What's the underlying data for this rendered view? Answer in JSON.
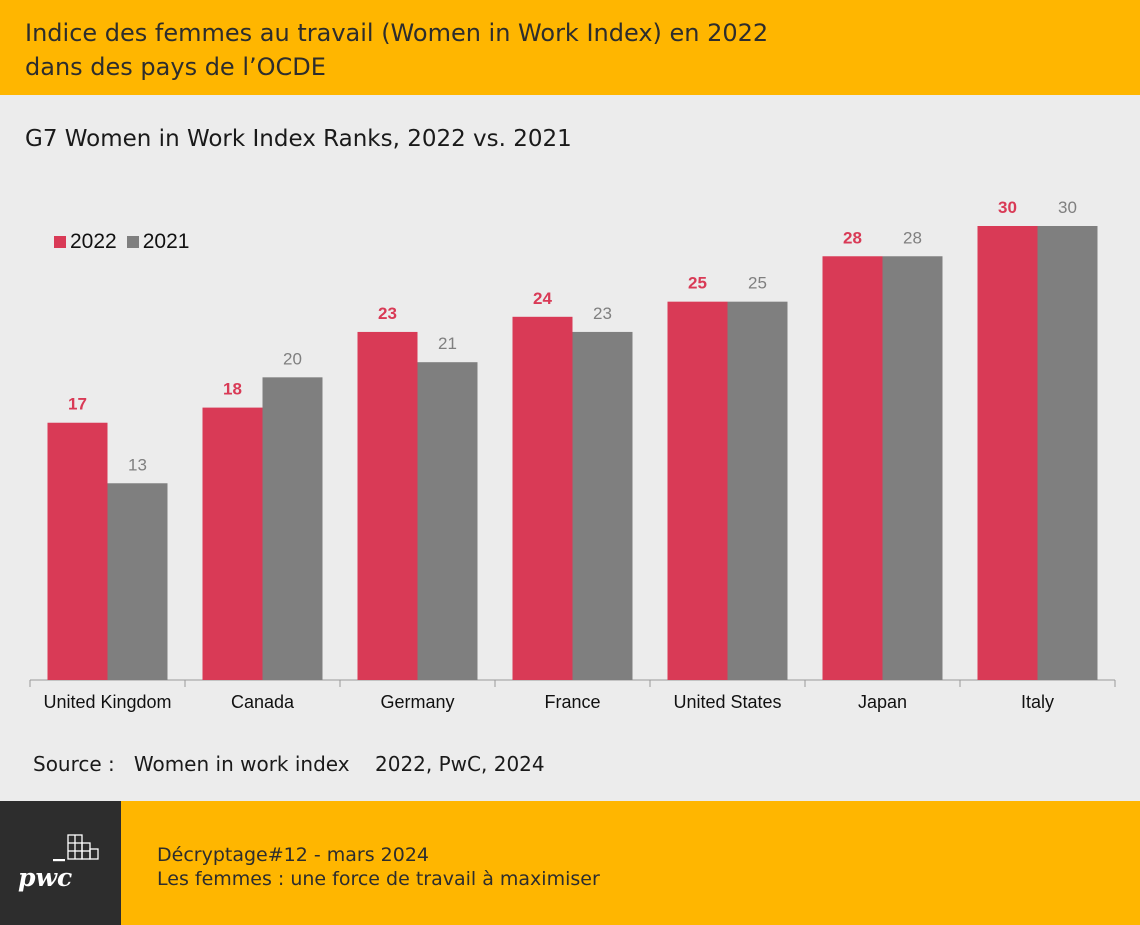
{
  "header": {
    "title_line1": "Indice des femmes au travail (Women in Work Index) en 2022",
    "title_line2": "dans des pays de l’OCDE"
  },
  "source": "Source :   Women in work index    2022, PwC, 2024",
  "footer": {
    "logo": "pwc",
    "line1": "Décryptage#12 - mars 2024",
    "line2": "Les femmes : une force de travail à maximiser"
  },
  "colors": {
    "series_2022": "#d93a56",
    "series_2021": "#7f7f7f",
    "accent": "#ffb600",
    "dark": "#2d2d2d"
  },
  "chart_data": {
    "type": "bar",
    "title": "G7 Women in Work Index Ranks, 2022 vs. 2021",
    "categories": [
      "United Kingdom",
      "Canada",
      "Germany",
      "France",
      "United States",
      "Japan",
      "Italy"
    ],
    "series": [
      {
        "name": "2022",
        "values": [
          17,
          18,
          23,
          24,
          25,
          28,
          30
        ]
      },
      {
        "name": "2021",
        "values": [
          13,
          20,
          21,
          23,
          25,
          28,
          30
        ]
      }
    ],
    "legend": "top-left",
    "grid": false,
    "ylim": [
      0,
      30
    ]
  }
}
